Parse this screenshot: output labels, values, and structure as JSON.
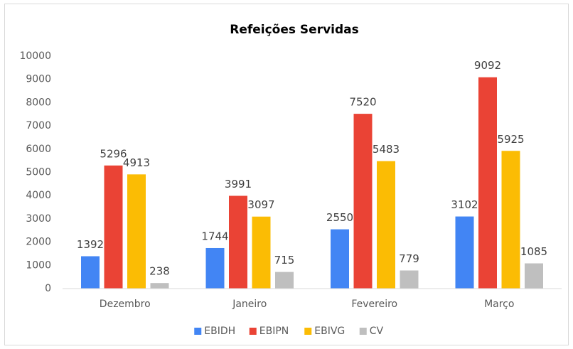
{
  "chart_data": {
    "type": "bar",
    "title": "Refeições Servidas",
    "categories": [
      "Dezembro",
      "Janeiro",
      "Fevereiro",
      "Março"
    ],
    "series": [
      {
        "name": "EBIDH",
        "color": "#4285f4",
        "values": [
          1392,
          1744,
          2550,
          3102
        ]
      },
      {
        "name": "EBIPN",
        "color": "#ea4335",
        "values": [
          5296,
          3991,
          7520,
          9092
        ]
      },
      {
        "name": "EBIVG",
        "color": "#fbbc04",
        "values": [
          4913,
          3097,
          5483,
          5925
        ]
      },
      {
        "name": "CV",
        "color": "#bfbfbf",
        "values": [
          238,
          715,
          779,
          1085
        ]
      }
    ],
    "ylim": [
      0,
      10000
    ],
    "yticks": [
      0,
      1000,
      2000,
      3000,
      4000,
      5000,
      6000,
      7000,
      8000,
      9000,
      10000
    ],
    "grid": false,
    "legend": "bottom"
  }
}
